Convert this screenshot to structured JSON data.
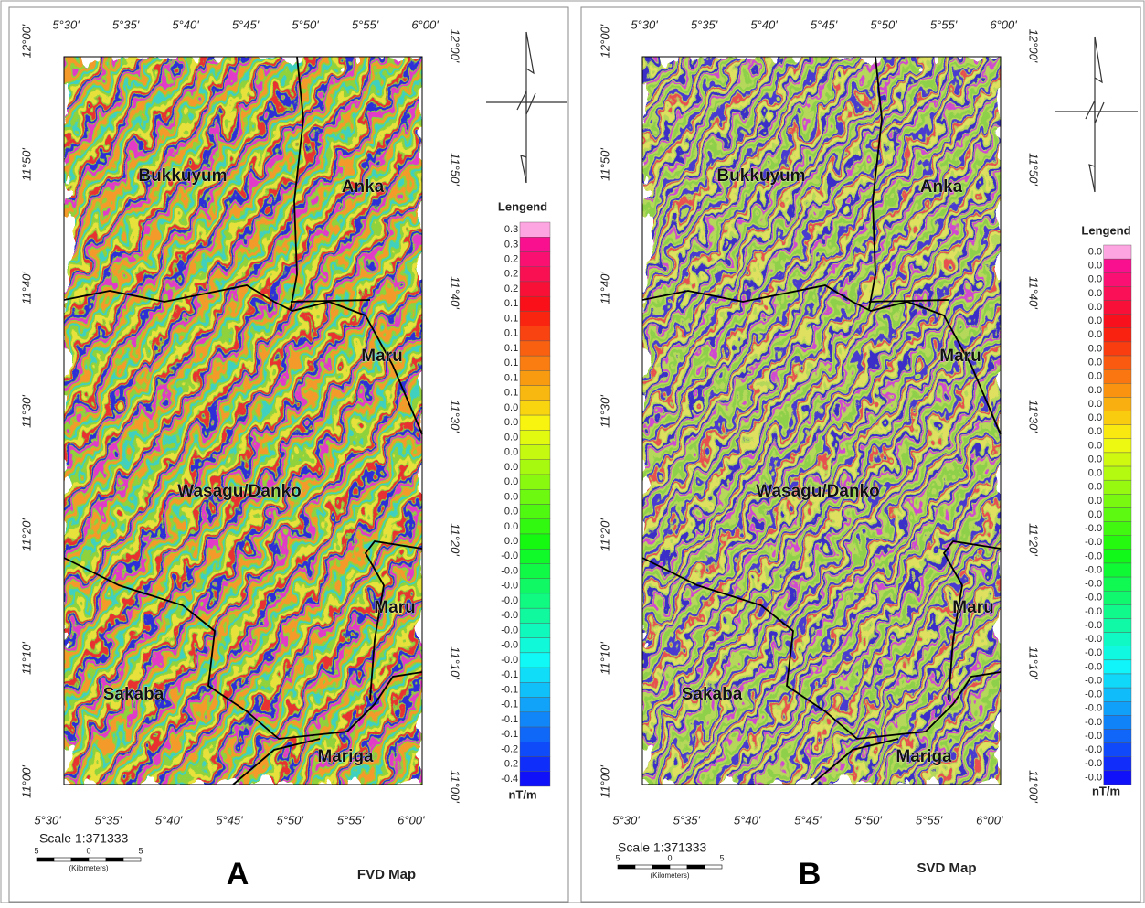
{
  "panels": [
    {
      "letter": "A",
      "map_name": "FVD Map",
      "lon_ticks": [
        "5°30'",
        "5°35'",
        "5°40'",
        "5°45'",
        "5°50'",
        "5°55'",
        "6°00'"
      ],
      "lat_ticks": [
        "12°00'",
        "11°50'",
        "11°40'",
        "11°30'",
        "11°20'",
        "11°10'",
        "11°00'"
      ],
      "places": [
        "Bukkuyum",
        "Anka",
        "Maru",
        "Wasagu/Danko",
        "Maru",
        "Sakaba",
        "Mariga"
      ],
      "legend": {
        "title": "Lengend",
        "unit": "nT/m",
        "labels": [
          "0.3",
          "0.3",
          "0.2",
          "0.2",
          "0.2",
          "0.1",
          "0.1",
          "0.1",
          "0.1",
          "0.1",
          "0.1",
          "0.1",
          "0.0",
          "0.0",
          "0.0",
          "0.0",
          "0.0",
          "0.0",
          "0.0",
          "0.0",
          "0.0",
          "0.0",
          "-0.0",
          "-0.0",
          "-0.0",
          "-0.0",
          "-0.0",
          "-0.0",
          "-0.0",
          "-0.0",
          "-0.1",
          "-0.1",
          "-0.1",
          "-0.1",
          "-0.1",
          "-0.2",
          "-0.2",
          "-0.4"
        ]
      },
      "scale": {
        "text": "Scale 1:371333",
        "bar_labels": [
          "5",
          "0",
          "5"
        ],
        "unit": "(Kilometers)"
      }
    },
    {
      "letter": "B",
      "map_name": "SVD Map",
      "lon_ticks": [
        "5°30'",
        "5°35'",
        "5°40'",
        "5°45'",
        "5°50'",
        "5°55'",
        "6°00'"
      ],
      "lat_ticks": [
        "12°00'",
        "11°50'",
        "11°40'",
        "11°30'",
        "11°20'",
        "11°10'",
        "11°00'"
      ],
      "places": [
        "Bukkuyum",
        "Anka",
        "Maru",
        "Wasagu/Danko",
        "Maru",
        "Sakaba",
        "Mariga"
      ],
      "legend": {
        "title": "Lengend",
        "unit": "nT/m",
        "labels": [
          "0.0",
          "0.0",
          "0.0",
          "0.0",
          "0.0",
          "0.0",
          "0.0",
          "0.0",
          "0.0",
          "0.0",
          "0.0",
          "0.0",
          "0.0",
          "0.0",
          "0.0",
          "0.0",
          "0.0",
          "0.0",
          "0.0",
          "0.0",
          "-0.0",
          "-0.0",
          "-0.0",
          "-0.0",
          "-0.0",
          "-0.0",
          "-0.0",
          "-0.0",
          "-0.0",
          "-0.0",
          "-0.0",
          "-0.0",
          "-0.0",
          "-0.0",
          "-0.0",
          "-0.0",
          "-0.0",
          "-0.0",
          "-0.0"
        ]
      },
      "scale": {
        "text": "Scale 1:371333",
        "bar_labels": [
          "5",
          "0",
          "5"
        ],
        "unit": "(Kilometers)"
      }
    }
  ]
}
